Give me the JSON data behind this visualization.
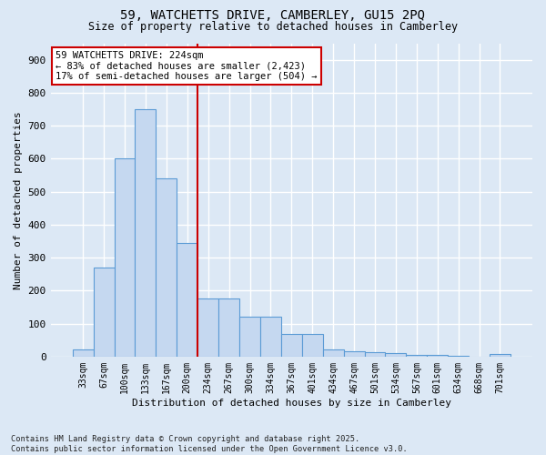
{
  "title": "59, WATCHETTS DRIVE, CAMBERLEY, GU15 2PQ",
  "subtitle": "Size of property relative to detached houses in Camberley",
  "xlabel": "Distribution of detached houses by size in Camberley",
  "ylabel": "Number of detached properties",
  "categories": [
    "33sqm",
    "67sqm",
    "100sqm",
    "133sqm",
    "167sqm",
    "200sqm",
    "234sqm",
    "267sqm",
    "300sqm",
    "334sqm",
    "367sqm",
    "401sqm",
    "434sqm",
    "467sqm",
    "501sqm",
    "534sqm",
    "567sqm",
    "601sqm",
    "634sqm",
    "668sqm",
    "701sqm"
  ],
  "values": [
    22,
    270,
    600,
    750,
    540,
    345,
    175,
    175,
    120,
    120,
    68,
    68,
    22,
    15,
    12,
    10,
    6,
    5,
    1,
    0,
    7
  ],
  "bar_color": "#c5d8f0",
  "bar_edge_color": "#5b9bd5",
  "background_color": "#dce8f5",
  "grid_color": "#ffffff",
  "vline_color": "#cc0000",
  "annotation_title": "59 WATCHETTS DRIVE: 224sqm",
  "annotation_line1": "← 83% of detached houses are smaller (2,423)",
  "annotation_line2": "17% of semi-detached houses are larger (504) →",
  "annotation_box_color": "#ffffff",
  "annotation_box_edge": "#cc0000",
  "footer1": "Contains HM Land Registry data © Crown copyright and database right 2025.",
  "footer2": "Contains public sector information licensed under the Open Government Licence v3.0.",
  "ylim": [
    0,
    950
  ],
  "yticks": [
    0,
    100,
    200,
    300,
    400,
    500,
    600,
    700,
    800,
    900
  ]
}
